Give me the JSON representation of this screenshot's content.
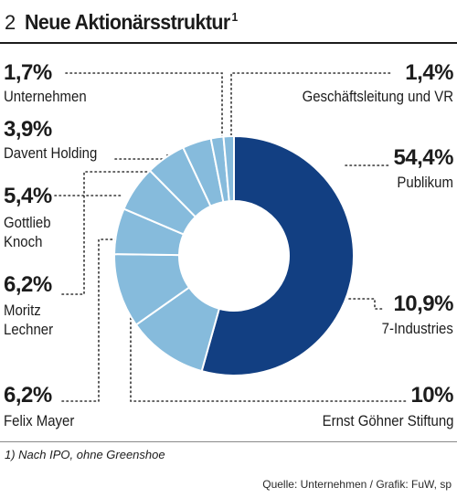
{
  "header": {
    "number": "2",
    "title": "Neue Aktionärsstruktur",
    "footnote_marker": "1"
  },
  "footnote": "1) Nach IPO, ohne Greenshoe",
  "source": "Quelle: Unternehmen / Grafik: FuW, sp",
  "colors": {
    "dark": "#123f82",
    "light": "#86bbdc",
    "text": "#1c1c1c"
  },
  "chart_data": {
    "type": "pie",
    "donut": true,
    "unit": "%",
    "slices": [
      {
        "label": "Publikum",
        "value": 54.4,
        "value_label": "54,4%",
        "color": "#123f82"
      },
      {
        "label": "7-Industries",
        "value": 10.9,
        "value_label": "10,9%",
        "color": "#86bbdc"
      },
      {
        "label": "Ernst Göhner Stiftung",
        "value": 10,
        "value_label": "10%",
        "color": "#86bbdc"
      },
      {
        "label": "Felix Mayer",
        "value": 6.2,
        "value_label": "6,2%",
        "color": "#86bbdc"
      },
      {
        "label": "Moritz Lechner",
        "value": 6.2,
        "value_label": "6,2%",
        "color": "#86bbdc"
      },
      {
        "label": "Gottlieb Knoch",
        "value": 5.4,
        "value_label": "5,4%",
        "color": "#86bbdc"
      },
      {
        "label": "Davent Holding",
        "value": 3.9,
        "value_label": "3,9%",
        "color": "#86bbdc"
      },
      {
        "label": "Unternehmen",
        "value": 1.7,
        "value_label": "1,7%",
        "color": "#86bbdc"
      },
      {
        "label": "Geschäftsleitung und VR",
        "value": 1.4,
        "value_label": "1,4%",
        "color": "#86bbdc"
      }
    ]
  }
}
